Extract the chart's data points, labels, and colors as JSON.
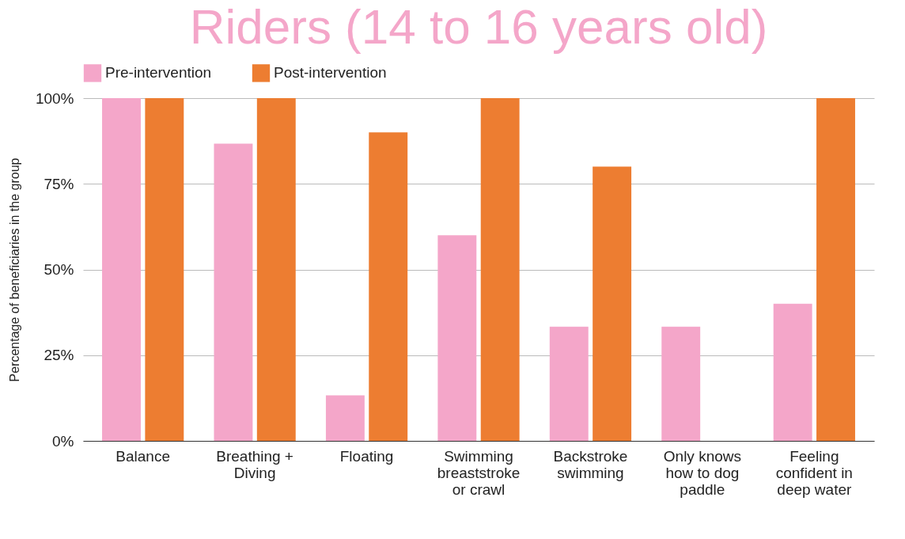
{
  "chart_data": {
    "type": "bar",
    "title": "Riders (14 to 16 years old)",
    "ylabel": "Percentage of beneficiaries in the group",
    "categories": [
      "Balance",
      "Breathing + Diving",
      "Floating",
      "Swimming breaststroke or crawl",
      "Backstroke swimming",
      "Only knows how to dog paddle",
      "Feeling confident in deep water"
    ],
    "series": [
      {
        "name": "Pre-intervention",
        "color": "#f4a6c9",
        "values": [
          100,
          86.7,
          13.3,
          60,
          33.3,
          33.3,
          40
        ]
      },
      {
        "name": "Post-intervention",
        "color": "#ed7d31",
        "values": [
          100,
          100,
          90,
          100,
          80,
          0,
          100
        ]
      }
    ],
    "ylim": [
      0,
      100
    ],
    "yticks": [
      {
        "value": 0,
        "label": "0%"
      },
      {
        "value": 25,
        "label": "25%"
      },
      {
        "value": 50,
        "label": "50%"
      },
      {
        "value": 75,
        "label": "75%"
      },
      {
        "value": 100,
        "label": "100%"
      }
    ],
    "grid": "y",
    "legend": "top"
  }
}
